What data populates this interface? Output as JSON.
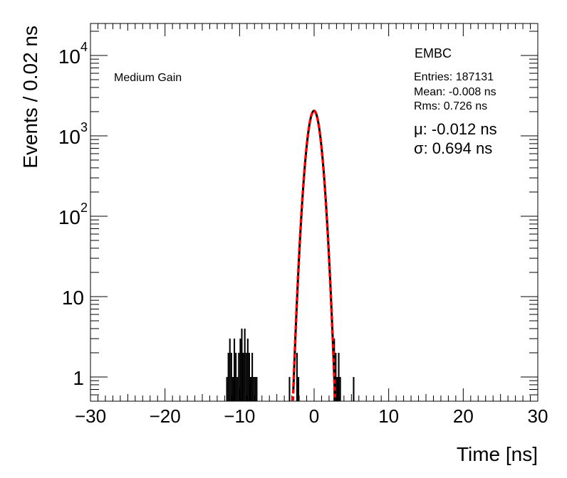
{
  "chart_data": {
    "type": "histogram",
    "title": "",
    "xlabel": "Time [ns]",
    "ylabel": "Events / 0.02 ns",
    "xlim": [
      -30,
      30
    ],
    "ylim": [
      0.5,
      25000
    ],
    "ylog": true,
    "grid": false,
    "x_ticks": [
      {
        "value": -30,
        "label": "−30"
      },
      {
        "value": -20,
        "label": "−20"
      },
      {
        "value": -10,
        "label": "−10"
      },
      {
        "value": 0,
        "label": "0"
      },
      {
        "value": 10,
        "label": "10"
      },
      {
        "value": 20,
        "label": "20"
      },
      {
        "value": 30,
        "label": "30"
      }
    ],
    "y_ticks": [
      {
        "value": 1,
        "base": "1",
        "exp": ""
      },
      {
        "value": 10,
        "base": "10",
        "exp": ""
      },
      {
        "value": 100,
        "base": "10",
        "exp": "2"
      },
      {
        "value": 1000,
        "base": "10",
        "exp": "3"
      },
      {
        "value": 10000,
        "base": "10",
        "exp": "4"
      }
    ],
    "panel_label": "Medium Gain",
    "legend": {
      "title": "EMBC",
      "entries": "Entries: 187131",
      "mean": "Mean: -0.008 ns",
      "rms": "Rms: 0.726 ns"
    },
    "fit": {
      "mu_text": "μ: -0.012 ns",
      "sigma_text": "σ: 0.694 ns",
      "mu": -0.012,
      "sigma": 0.694,
      "amplitude": 2050,
      "color": "#ff0000",
      "style": "dashed"
    },
    "series": [
      {
        "color": "#000000",
        "x": [
          -11.8,
          -11.6,
          -11.4,
          -11.2,
          -11.0,
          -10.8,
          -10.6,
          -10.4,
          -10.2,
          -10.0,
          -9.8,
          -9.6,
          -9.4,
          -9.2,
          -9.0,
          -8.8,
          -8.6,
          -8.4,
          -8.2,
          -8.0,
          -7.8,
          -3.4,
          -2.4,
          -2.2,
          2.6,
          2.8,
          3.0,
          3.2,
          3.4,
          5.2
        ],
        "values": [
          1,
          2,
          3,
          2,
          1,
          3,
          2,
          1,
          2,
          3,
          4,
          2,
          4,
          2,
          3,
          2,
          1,
          2,
          1,
          1,
          1,
          1,
          2,
          1,
          3,
          2,
          1,
          2,
          1,
          1
        ]
      }
    ]
  }
}
